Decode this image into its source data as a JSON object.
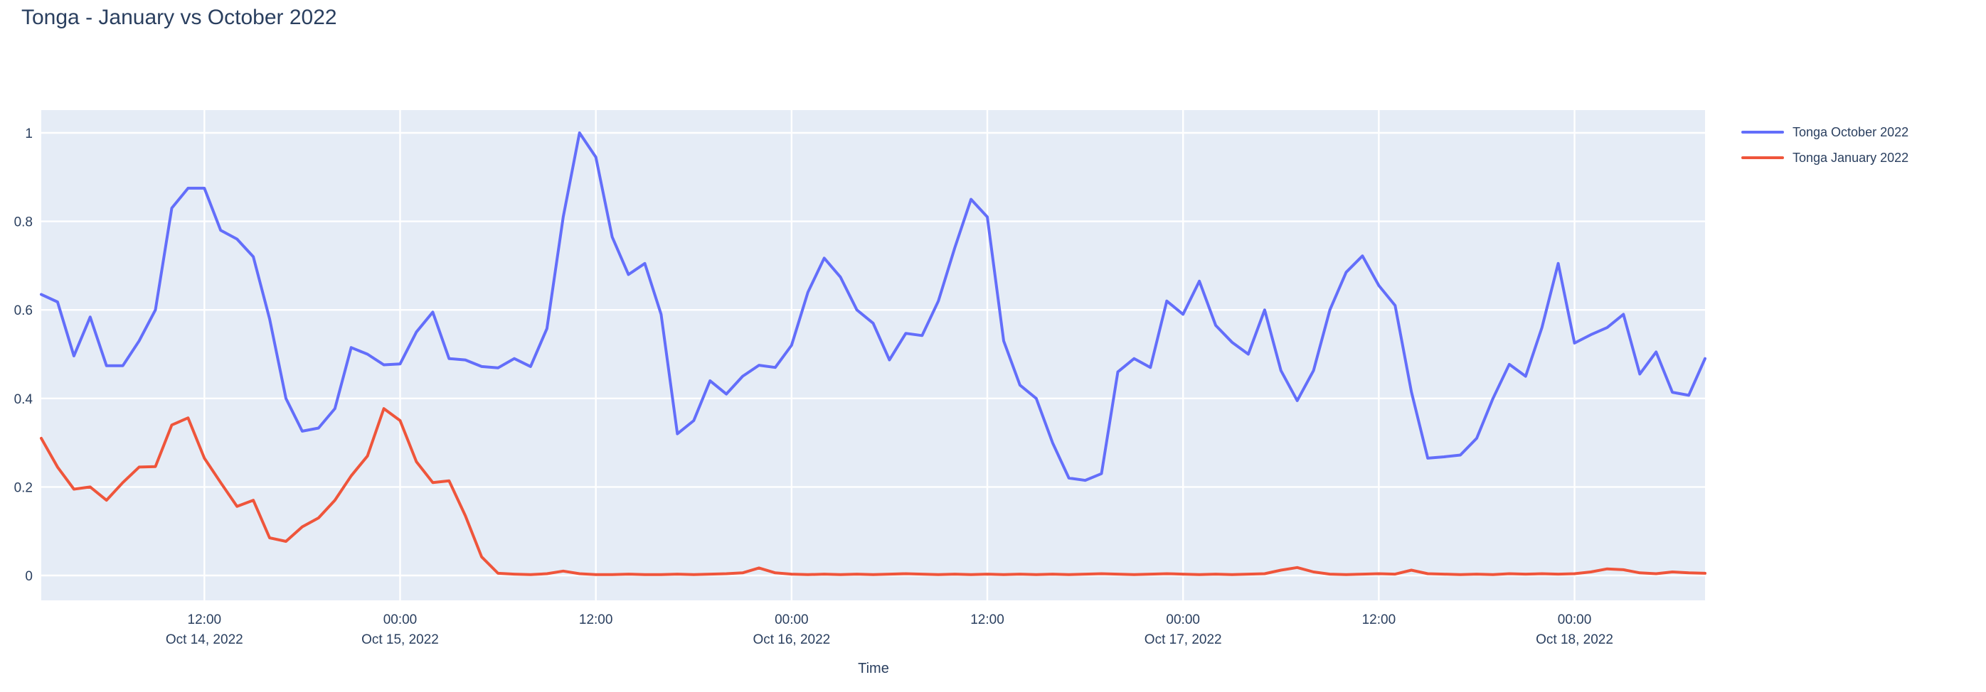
{
  "header": {
    "title": "Tonga - January vs October 2022"
  },
  "chart_data": {
    "type": "line",
    "title": "Tonga - January vs October 2022",
    "xlabel": "Time",
    "ylabel": "",
    "x_start": "Oct 14, 2022 02:00",
    "x_step_hours": 1,
    "ylim": [
      -0.056,
      1.056
    ],
    "grid": true,
    "plot_bg": "#E5ECF6",
    "gridline_color": "#ffffff",
    "text_color": "#2a3f5f",
    "legend_position": "right-top",
    "yticks": [
      {
        "value": 0,
        "label": "0"
      },
      {
        "value": 0.2,
        "label": "0.2"
      },
      {
        "value": 0.4,
        "label": "0.4"
      },
      {
        "value": 0.6,
        "label": "0.6"
      },
      {
        "value": 0.8,
        "label": "0.8"
      },
      {
        "value": 1,
        "label": "1"
      }
    ],
    "xticks": [
      {
        "hour_index": 10,
        "time": "12:00",
        "date": "Oct 14, 2022"
      },
      {
        "hour_index": 22,
        "time": "00:00",
        "date": "Oct 15, 2022"
      },
      {
        "hour_index": 34,
        "time": "12:00",
        "date": ""
      },
      {
        "hour_index": 46,
        "time": "00:00",
        "date": "Oct 16, 2022"
      },
      {
        "hour_index": 58,
        "time": "12:00",
        "date": ""
      },
      {
        "hour_index": 70,
        "time": "00:00",
        "date": "Oct 17, 2022"
      },
      {
        "hour_index": 82,
        "time": "12:00",
        "date": ""
      },
      {
        "hour_index": 94,
        "time": "00:00",
        "date": "Oct 18, 2022"
      }
    ],
    "series": [
      {
        "name": "Tonga October 2022",
        "color": "#636EFA",
        "values": [
          0.635,
          0.618,
          0.496,
          0.584,
          0.474,
          0.474,
          0.53,
          0.6,
          0.83,
          0.875,
          0.875,
          0.78,
          0.76,
          0.72,
          0.58,
          0.4,
          0.326,
          0.333,
          0.377,
          0.515,
          0.5,
          0.476,
          0.478,
          0.55,
          0.595,
          0.49,
          0.487,
          0.472,
          0.469,
          0.49,
          0.472,
          0.558,
          0.81,
          1.0,
          0.945,
          0.765,
          0.68,
          0.705,
          0.59,
          0.32,
          0.35,
          0.44,
          0.41,
          0.45,
          0.475,
          0.47,
          0.52,
          0.64,
          0.717,
          0.674,
          0.6,
          0.57,
          0.487,
          0.547,
          0.542,
          0.62,
          0.74,
          0.85,
          0.81,
          0.53,
          0.43,
          0.4,
          0.3,
          0.22,
          0.215,
          0.23,
          0.46,
          0.49,
          0.47,
          0.62,
          0.59,
          0.665,
          0.565,
          0.527,
          0.5,
          0.6,
          0.463,
          0.395,
          0.463,
          0.6,
          0.685,
          0.722,
          0.655,
          0.61,
          0.415,
          0.265,
          0.268,
          0.272,
          0.31,
          0.4,
          0.477,
          0.45,
          0.56,
          0.705,
          0.525,
          0.544,
          0.56,
          0.59,
          0.455,
          0.505,
          0.414,
          0.407,
          0.49
        ]
      },
      {
        "name": "Tonga January 2022",
        "color": "#EF553B",
        "values": [
          0.31,
          0.245,
          0.195,
          0.2,
          0.17,
          0.21,
          0.245,
          0.246,
          0.34,
          0.356,
          0.265,
          0.21,
          0.156,
          0.17,
          0.085,
          0.077,
          0.11,
          0.13,
          0.17,
          0.225,
          0.27,
          0.377,
          0.35,
          0.257,
          0.21,
          0.214,
          0.135,
          0.042,
          0.005,
          0.003,
          0.002,
          0.004,
          0.01,
          0.004,
          0.002,
          0.002,
          0.003,
          0.002,
          0.002,
          0.003,
          0.002,
          0.003,
          0.004,
          0.006,
          0.017,
          0.006,
          0.003,
          0.002,
          0.003,
          0.002,
          0.003,
          0.002,
          0.003,
          0.004,
          0.003,
          0.002,
          0.003,
          0.002,
          0.003,
          0.002,
          0.003,
          0.002,
          0.003,
          0.002,
          0.003,
          0.004,
          0.003,
          0.002,
          0.003,
          0.004,
          0.003,
          0.002,
          0.003,
          0.002,
          0.003,
          0.004,
          0.012,
          0.018,
          0.008,
          0.003,
          0.002,
          0.003,
          0.004,
          0.003,
          0.012,
          0.004,
          0.003,
          0.002,
          0.003,
          0.002,
          0.004,
          0.003,
          0.004,
          0.003,
          0.004,
          0.008,
          0.015,
          0.013,
          0.006,
          0.004,
          0.008,
          0.006,
          0.005
        ]
      }
    ]
  }
}
